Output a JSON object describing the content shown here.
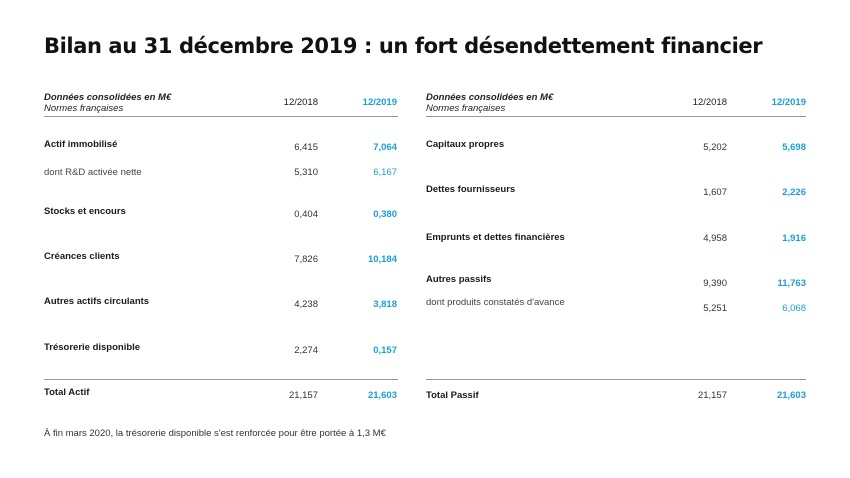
{
  "title": "Bilan au 31 décembre 2019 : un fort désendettement financier",
  "header": {
    "label_line1": "Données consolidées en M€",
    "label_line2": "Normes françaises",
    "prev_year": "12/2018",
    "cur_year": "12/2019"
  },
  "actif": [
    {
      "label": "Actif immobilisé",
      "prev": "6,415",
      "cur": "7,064"
    },
    {
      "label": "dont R&D activée nette",
      "prev": "5,310",
      "cur": "6,167"
    },
    {
      "label": "Stocks et encours",
      "prev": "0,404",
      "cur": "0,380"
    },
    {
      "label": "Créances clients",
      "prev": "7,826",
      "cur": "10,184"
    },
    {
      "label": "Autres actifs circulants",
      "prev": "4,238",
      "cur": "3,818"
    },
    {
      "label": "Trésorerie disponible",
      "prev": "2,274",
      "cur": "0,157"
    }
  ],
  "passif": [
    {
      "label": "Capitaux propres",
      "prev": "5,202",
      "cur": "5,698"
    },
    {
      "label": "Dettes fournisseurs",
      "prev": "1,607",
      "cur": "2,226"
    },
    {
      "label": "Emprunts et dettes financières",
      "prev": "4,958",
      "cur": "1,916"
    },
    {
      "label": "Autres passifs",
      "prev": "9,390",
      "cur": "11,763"
    },
    {
      "label": "dont produits constatés d'avance",
      "prev": "5,251",
      "cur": "6,068"
    }
  ],
  "total_actif": {
    "label": "Total Actif",
    "prev": "21,157",
    "cur": "21,603"
  },
  "total_passif": {
    "label": "Total Passif",
    "prev": "21,157",
    "cur": "21,603"
  },
  "note": "À fin mars 2020, la trésorerie disponible s'est renforcée pour être portée à 1,3 M€",
  "colors": {
    "accent": "#1aa0d8",
    "rule": "#9a9a9a"
  }
}
